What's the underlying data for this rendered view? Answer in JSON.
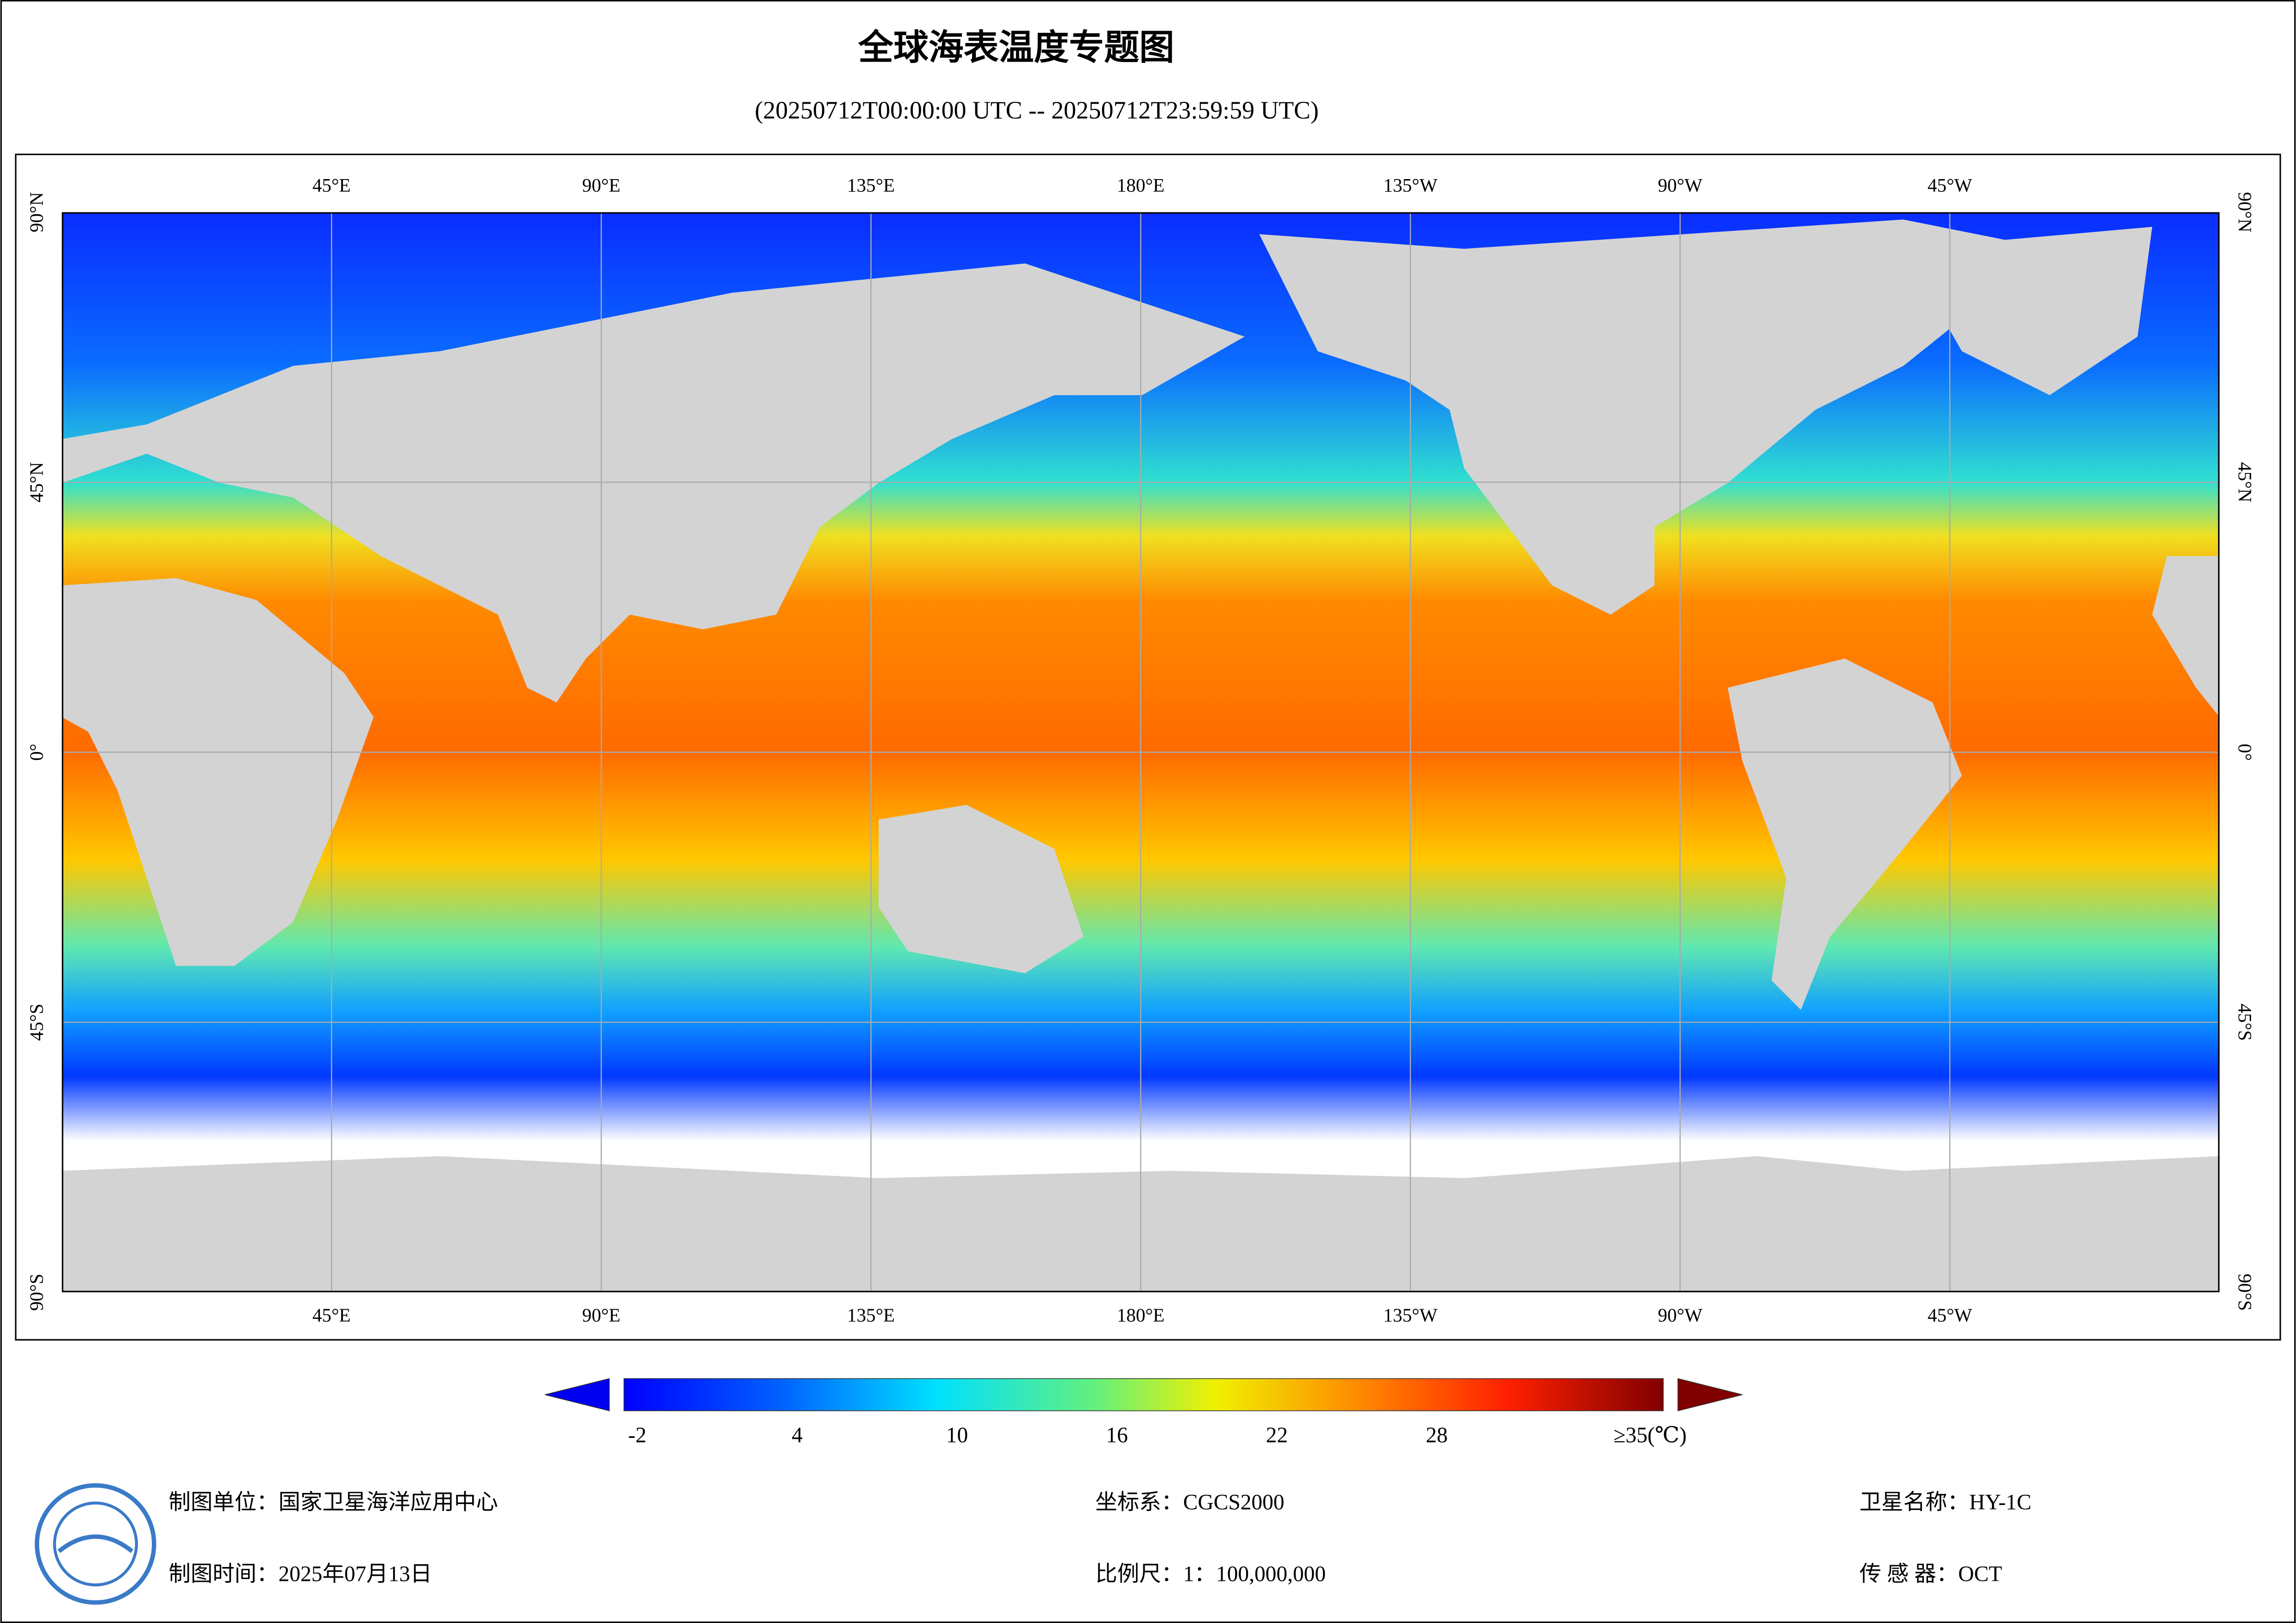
{
  "title": "全球海表温度专题图",
  "subtitle": "(20250712T00:00:00 UTC -- 20250712T23:59:59 UTC)",
  "graticule": {
    "lon": [
      {
        "value": 45,
        "label": "45°E"
      },
      {
        "value": 90,
        "label": "90°E"
      },
      {
        "value": 135,
        "label": "135°E"
      },
      {
        "value": 180,
        "label": "180°E"
      },
      {
        "value": -135,
        "label": "135°W"
      },
      {
        "value": -90,
        "label": "90°W"
      },
      {
        "value": -45,
        "label": "45°W"
      }
    ],
    "lat": [
      {
        "value": 90,
        "label": "90°N"
      },
      {
        "value": 45,
        "label": "45°N"
      },
      {
        "value": 0,
        "label": "0°"
      },
      {
        "value": -45,
        "label": "45°S"
      },
      {
        "value": -90,
        "label": "90°S"
      }
    ]
  },
  "colorbar": {
    "range": [
      -2.5,
      36.5
    ],
    "ticks": [
      -2,
      4,
      10,
      16,
      22,
      28
    ],
    "max_label": "≥35(℃)"
  },
  "footer": {
    "unit": "制图单位：国家卫星海洋应用中心",
    "date": "制图时间：2025年07月13日",
    "crs": "坐标系：CGCS2000",
    "scale": "比例尺：1：100,000,000",
    "satellite": "卫星名称：HY-1C",
    "sensor": "传 感 器：OCT"
  }
}
